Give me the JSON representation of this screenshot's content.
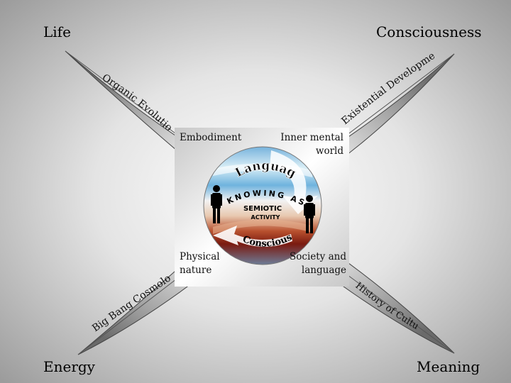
{
  "corners": {
    "top_left": "Life",
    "top_right": "Consciousness",
    "bottom_left": "Energy",
    "bottom_right": "Meaning"
  },
  "arms": {
    "top_left": "Organic Evolution",
    "top_right": "Existential Development",
    "bottom_left": "Big Bang Cosmology",
    "bottom_right": "History of Culture"
  },
  "center_box": {
    "top_left": "Embodiment",
    "top_right_line1": "Inner mental",
    "top_right_line2": "world",
    "bottom_left_line1": "Physical",
    "bottom_left_line2": "nature",
    "bottom_right_line1": "Society and",
    "bottom_right_line2": "language"
  },
  "circle": {
    "top_label": "Language",
    "center_line1": "KNOWING AS",
    "center_line2": "SEMIOTIC",
    "center_line3": "ACTIVITY",
    "bottom_label": "Consciousness"
  }
}
